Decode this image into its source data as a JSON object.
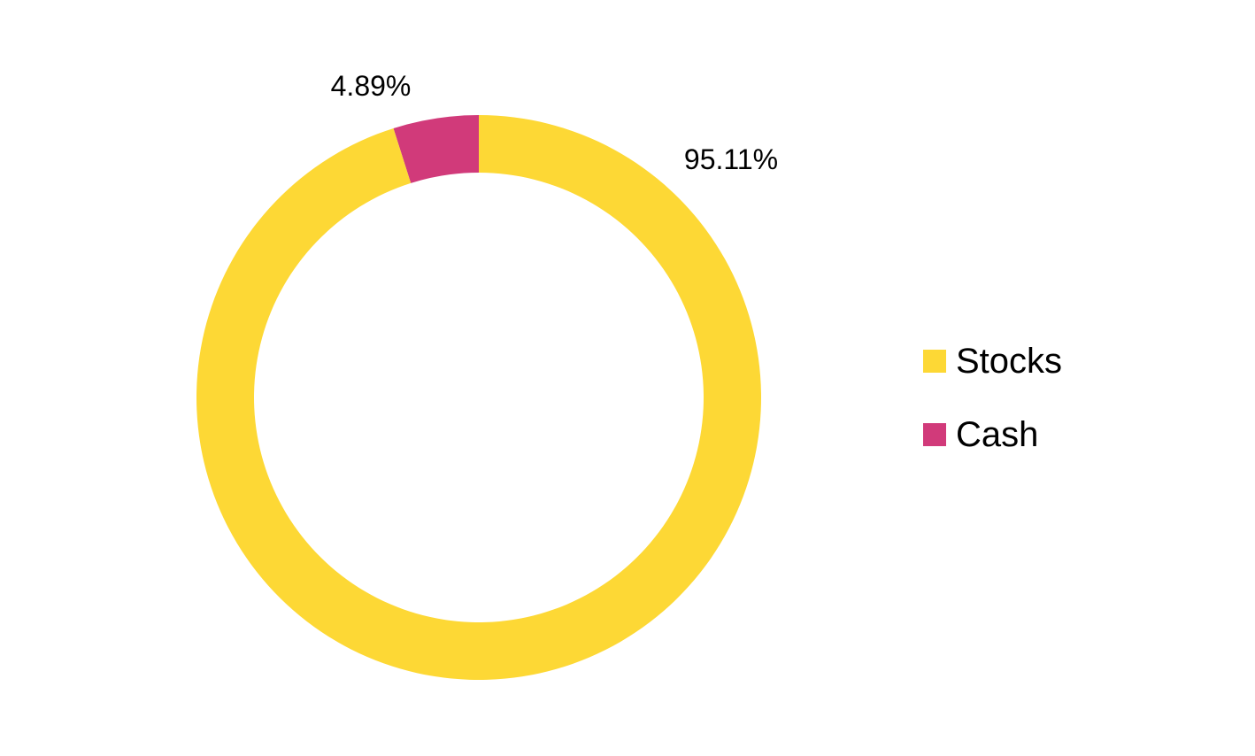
{
  "chart_data": {
    "type": "pie",
    "variant": "donut",
    "title": "",
    "series": [
      {
        "categories": [
          "Cash",
          "Stocks"
        ],
        "values": [
          4.89,
          95.11
        ],
        "labels": [
          "4.89%",
          "95.11%"
        ],
        "colors": [
          "#D13A7A",
          "#FDD835"
        ]
      }
    ],
    "legend": {
      "position": "right",
      "items": [
        {
          "label": "Stocks",
          "color": "#FDD835"
        },
        {
          "label": "Cash",
          "color": "#D13A7A"
        }
      ]
    }
  }
}
